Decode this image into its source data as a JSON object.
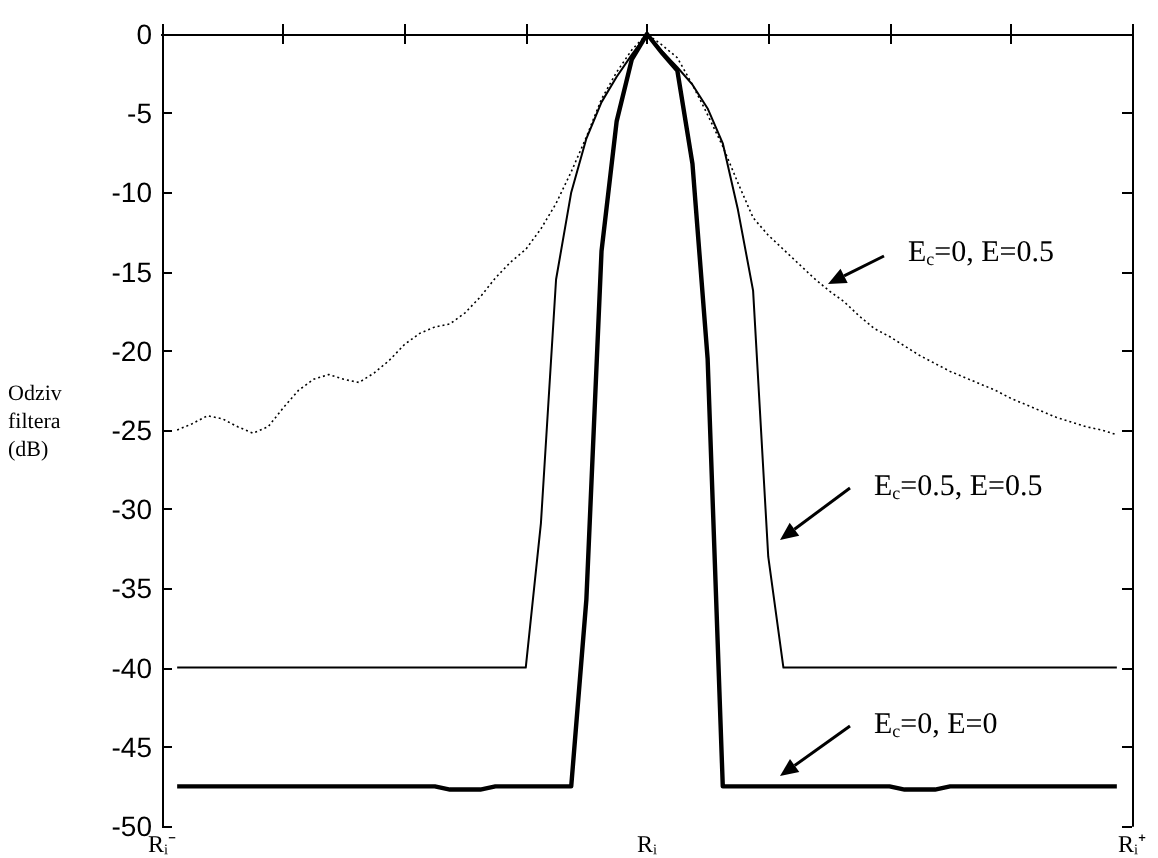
{
  "chart_data": {
    "type": "line",
    "ylabel": "Odziv filtera (dB)",
    "categories": [
      "Rᵢ⁻",
      null,
      null,
      null,
      null,
      null,
      null,
      null,
      null,
      null,
      null,
      null,
      null,
      null,
      null,
      null,
      null,
      null,
      null,
      null,
      null,
      null,
      null,
      null,
      null,
      null,
      null,
      null,
      null,
      null,
      null,
      null,
      "Rᵢ",
      null,
      null,
      null,
      null,
      null,
      null,
      null,
      null,
      null,
      null,
      null,
      null,
      null,
      null,
      null,
      null,
      null,
      null,
      null,
      null,
      null,
      null,
      null,
      null,
      null,
      null,
      null,
      null,
      null,
      null,
      null,
      "Rᵢ⁺"
    ],
    "ylim": [
      -50,
      0
    ],
    "yticks": [
      -50,
      -45,
      -40,
      -35,
      -30,
      -25,
      -20,
      -15,
      -10,
      -5,
      0
    ],
    "grid": false,
    "series": [
      {
        "color": "#000000",
        "line_style": "dotted",
        "values": [
          null,
          -25.0,
          -24.6,
          -24.1,
          -24.3,
          -24.8,
          -25.2,
          -24.8,
          -23.6,
          -22.5,
          -21.8,
          -21.5,
          -21.8,
          -22.0,
          -21.4,
          -20.6,
          -19.6,
          -18.9,
          -18.5,
          -18.3,
          -17.6,
          -16.6,
          -15.4,
          -14.4,
          -13.6,
          -12.3,
          -10.7,
          -8.7,
          -6.5,
          -4.1,
          -2.4,
          -1.0,
          0,
          -0.7,
          -1.5,
          -3.2,
          -5.1,
          -7.1,
          -9.4,
          -11.6,
          -12.7,
          -13.6,
          -14.5,
          -15.4,
          -16.2,
          -16.9,
          -17.8,
          -18.6,
          -19.1,
          -19.7,
          -20.3,
          -20.8,
          -21.3,
          -21.7,
          -22.1,
          -22.5,
          -23.0,
          -23.4,
          -23.8,
          -24.2,
          -24.5,
          -24.8,
          -25.0,
          -25.3,
          null
        ]
      },
      {
        "color": "#000000",
        "line_style": "solid",
        "values": [
          null,
          -40,
          -40,
          -40,
          -40,
          -40,
          -40,
          -40,
          -40,
          -40,
          -40,
          -40,
          -40,
          -40,
          -40,
          -40,
          -40,
          -40,
          -40,
          -40,
          -40,
          -40,
          -40,
          -40,
          -40,
          -30.9,
          -15.5,
          -10.0,
          -6.6,
          -4.3,
          -2.7,
          -1.3,
          0,
          -1.1,
          -2.1,
          -3.2,
          -4.7,
          -6.9,
          -11.1,
          -16.2,
          -33.0,
          -40,
          -40,
          -40,
          -40,
          -40,
          -40,
          -40,
          -40,
          -40,
          -40,
          -40,
          -40,
          -40,
          -40,
          -40,
          -40,
          -40,
          -40,
          -40,
          -40,
          -40,
          -40,
          -40,
          null
        ]
      },
      {
        "color": "#000000",
        "line_style": "solid",
        "values": [
          null,
          -47.5,
          -47.5,
          -47.5,
          -47.5,
          -47.5,
          -47.5,
          -47.5,
          -47.5,
          -47.5,
          -47.5,
          -47.5,
          -47.5,
          -47.5,
          -47.5,
          -47.5,
          -47.5,
          -47.5,
          -47.5,
          -47.7,
          -47.7,
          -47.7,
          -47.5,
          -47.5,
          -47.5,
          -47.5,
          -47.5,
          -47.5,
          -35.7,
          -13.7,
          -5.5,
          -1.6,
          0,
          -1.2,
          -2.3,
          -8.2,
          -20.5,
          -47.5,
          -47.5,
          -47.5,
          -47.5,
          -47.5,
          -47.5,
          -47.5,
          -47.5,
          -47.5,
          -47.5,
          -47.5,
          -47.5,
          -47.7,
          -47.7,
          -47.7,
          -47.5,
          -47.5,
          -47.5,
          -47.5,
          -47.5,
          -47.5,
          -47.5,
          -47.5,
          -47.5,
          -47.5,
          -47.5,
          -47.5,
          null
        ]
      }
    ],
    "annotations": [
      "E$_{c}$=0, E=0.5",
      "E$_{c}$=0.5, E=0.5",
      "E$_{c}$=0, E=0"
    ]
  }
}
